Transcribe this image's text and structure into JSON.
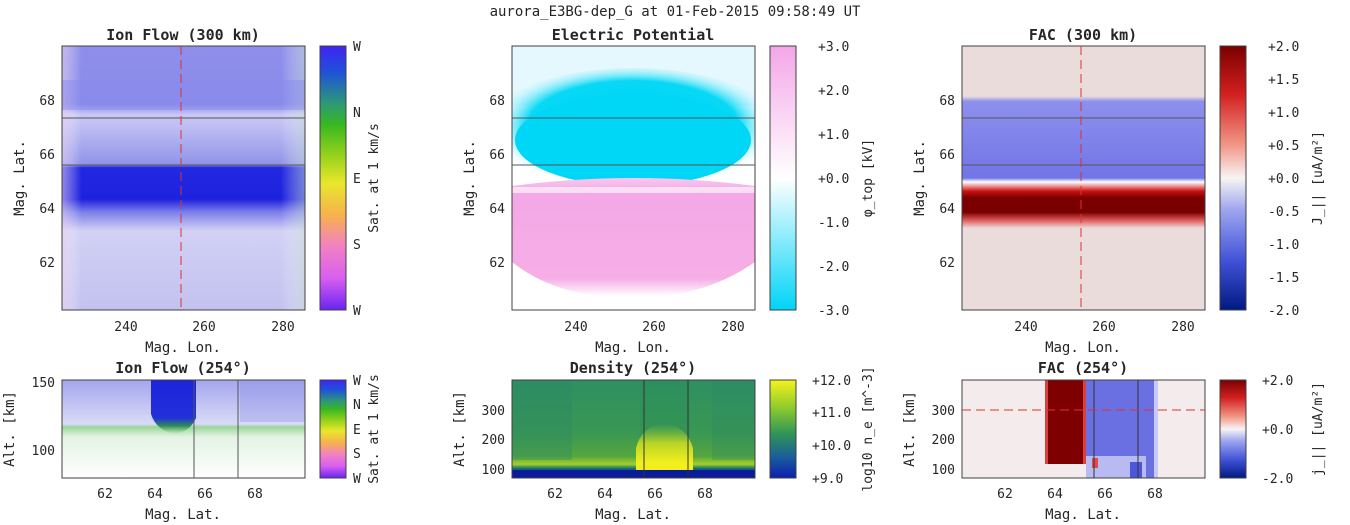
{
  "figure": {
    "title": "aurora_E3BG-dep_G at 01-Feb-2015 09:58:49 UT"
  },
  "chart_data": [
    {
      "id": "ionflow-map",
      "type": "heatmap",
      "title": "Ion Flow (300 km)",
      "xlabel": "Mag. Lon.",
      "ylabel": "Mag. Lat.",
      "xticks": [
        "240",
        "260",
        "280"
      ],
      "yticks": [
        "62",
        "64",
        "66",
        "68"
      ],
      "xlim": [
        224,
        286
      ],
      "ylim": [
        60.3,
        70
      ],
      "colorbar": {
        "label": "Sat. at 1 km/s",
        "ticks": [
          "W",
          "N",
          "E",
          "S",
          "W"
        ]
      },
      "colors": {
        "dominant": "#1f23df",
        "background": "#c5c3f1"
      },
      "bands": [
        {
          "lat": [
            70.0,
            67.6
          ],
          "color": "#8a8bea"
        },
        {
          "lat": [
            67.6,
            65.5
          ],
          "color": "#b6b5f3"
        },
        {
          "lat": [
            65.5,
            63.9
          ],
          "color": "#1f23df"
        },
        {
          "lat": [
            63.9,
            60.3
          ],
          "color": "#c5c3f1"
        }
      ],
      "reference_lines": {
        "meridian_lon": 254,
        "lat_lines": [
          67.35,
          65.55
        ]
      }
    },
    {
      "id": "potential-map",
      "type": "heatmap",
      "title": "Electric Potential",
      "ylabel": "Mag. Lat.",
      "xticks": [
        "240",
        "260",
        "280"
      ],
      "yticks": [
        "62",
        "64",
        "66",
        "68"
      ],
      "xlim": [
        224,
        286
      ],
      "ylim": [
        60.3,
        70
      ],
      "colorbar": {
        "label": "φ_top [kV]",
        "ticks": [
          "+3.0",
          "+2.0",
          "+1.0",
          "+0.0",
          "-1.0",
          "-2.0",
          "-3.0"
        ],
        "range": [
          -3.0,
          3.0
        ]
      },
      "features": [
        {
          "region": "lat 64.8-70",
          "value_kv": -2.2,
          "color": "#00d7f5"
        },
        {
          "region": "lat 60.3-64.8",
          "value_kv": 1.8,
          "color": "#f4a7e6"
        }
      ],
      "reference_lines": {
        "lat_lines": [
          67.35,
          65.55
        ]
      }
    },
    {
      "id": "fac-map",
      "type": "heatmap",
      "title": "FAC (300 km)",
      "xlabel": "Mag. Lon.",
      "ylabel": "Mag. Lat.",
      "xticks": [
        "240",
        "260",
        "280"
      ],
      "yticks": [
        "62",
        "64",
        "66",
        "68"
      ],
      "xlim": [
        224,
        286
      ],
      "ylim": [
        60.3,
        70
      ],
      "colorbar": {
        "label": "J_|| [uA/m²]",
        "ticks": [
          "+2.0",
          "+1.5",
          "+1.0",
          "+0.5",
          "+0.0",
          "-0.5",
          "-1.0",
          "-1.5",
          "-2.0"
        ],
        "range": [
          -2.0,
          2.0
        ]
      },
      "bands": [
        {
          "lat": [
            70.0,
            67.8
          ],
          "value": 0.05,
          "color": "#ead9d9"
        },
        {
          "lat": [
            67.8,
            65.0
          ],
          "value": -1.0,
          "color": "#7a7de8"
        },
        {
          "lat": [
            65.0,
            63.8
          ],
          "value": 2.0,
          "color": "#7e0000"
        },
        {
          "lat": [
            63.8,
            60.3
          ],
          "value": 0.05,
          "color": "#ead9d9"
        }
      ],
      "reference_lines": {
        "meridian_lon": 254,
        "lat_lines": [
          67.35,
          65.55
        ]
      }
    },
    {
      "id": "ionflow-profile",
      "type": "heatmap",
      "title": "Ion Flow (254°)",
      "xlabel": "Mag. Lat.",
      "ylabel": "Alt. [km]",
      "xticks": [
        "62",
        "64",
        "66",
        "68"
      ],
      "yticks": [
        "100",
        "150"
      ],
      "xlim": [
        60.3,
        70
      ],
      "ylim": [
        80,
        150
      ],
      "colorbar": {
        "label": "Sat. at 1 km/s",
        "ticks": [
          "W",
          "N",
          "E",
          "S",
          "W"
        ]
      },
      "reference_lines": {
        "lat_lines": [
          65.55,
          67.35
        ]
      }
    },
    {
      "id": "density-profile",
      "type": "heatmap",
      "title": "Density (254°)",
      "xlabel": "Mag. Lat.",
      "ylabel": "Alt. [km]",
      "xticks": [
        "62",
        "64",
        "66",
        "68"
      ],
      "yticks": [
        "100",
        "200",
        "300"
      ],
      "xlim": [
        60.3,
        70
      ],
      "ylim": [
        80,
        400
      ],
      "colorbar": {
        "label": "log10 n_e [m^-3]",
        "ticks": [
          "+12.0",
          "+11.0",
          "+10.0",
          "+9.0"
        ],
        "range": [
          9.0,
          12.0
        ]
      },
      "reference_lines": {
        "lat_lines": [
          65.55,
          67.35
        ]
      }
    },
    {
      "id": "fac-profile",
      "type": "heatmap",
      "title": "FAC (254°)",
      "xlabel": "Mag. Lat.",
      "ylabel": "Alt. [km]",
      "xticks": [
        "62",
        "64",
        "66",
        "68"
      ],
      "yticks": [
        "100",
        "200",
        "300"
      ],
      "xlim": [
        60.3,
        70
      ],
      "ylim": [
        80,
        400
      ],
      "colorbar": {
        "label": "j_|| [uA/m²]",
        "ticks": [
          "+2.0",
          "+0.0",
          "-2.0"
        ],
        "range": [
          -2.0,
          2.0
        ]
      },
      "reference_lines": {
        "altitude_km": 300,
        "lat_lines": [
          65.55,
          67.35
        ]
      }
    }
  ]
}
